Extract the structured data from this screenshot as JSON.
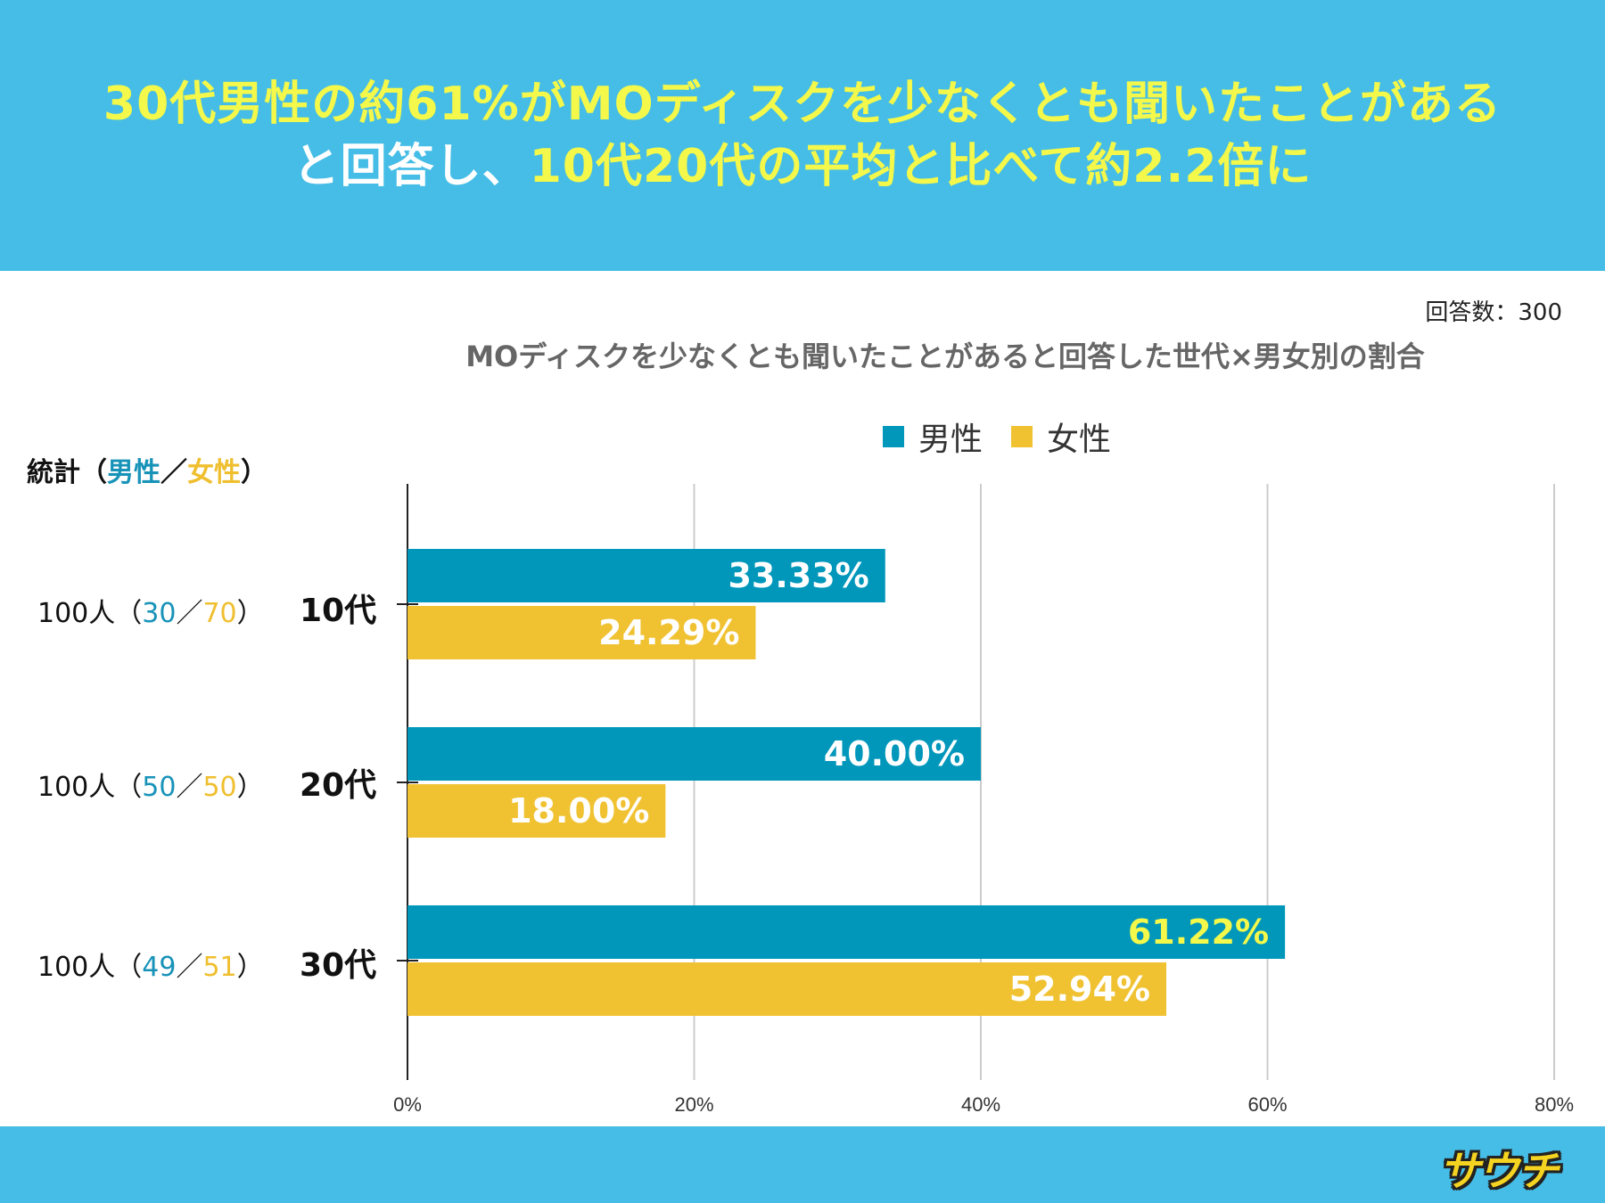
{
  "headline": {
    "line1": "30代男性の約61%がMOディスクを少なくとも聞いたことがある",
    "line2_white": "と回答し、",
    "line2_yellow": "10代20代の平均と比べて約2.2倍に"
  },
  "respondents": "回答数：300",
  "stats": {
    "head_prefix": "統計（",
    "head_male": "男性",
    "head_sep": "／",
    "head_female": "女性",
    "head_suffix": "）",
    "rows": [
      {
        "total": "100人（",
        "male": "30",
        "sep": "／",
        "female": "70",
        "end": "）",
        "age": "10代"
      },
      {
        "total": "100人（",
        "male": "50",
        "sep": "／",
        "female": "50",
        "end": "）",
        "age": "20代"
      },
      {
        "total": "100人（",
        "male": "49",
        "sep": "／",
        "female": "51",
        "end": "）",
        "age": "30代"
      }
    ]
  },
  "colors": {
    "male": "#0097bb",
    "female": "#f0c232",
    "header": "#45bde6",
    "highlight": "#f3f84a"
  },
  "brand": "サウチ",
  "chart_data": {
    "type": "bar",
    "orientation": "horizontal",
    "title": "MOディスクを少なくとも聞いたことがあると回答した世代×男女別の割合",
    "categories": [
      "10代",
      "20代",
      "30代"
    ],
    "series": [
      {
        "name": "男性",
        "values": [
          33.33,
          40.0,
          61.22
        ],
        "labels": [
          "33.33%",
          "40.00%",
          "61.22%"
        ]
      },
      {
        "name": "女性",
        "values": [
          24.29,
          18.0,
          52.94
        ],
        "labels": [
          "24.29%",
          "18.00%",
          "52.94%"
        ]
      }
    ],
    "xlim": [
      0,
      80
    ],
    "xticks": [
      "0%",
      "20%",
      "40%",
      "60%",
      "80%"
    ],
    "highlight_label": "61.22%",
    "legend": "top",
    "grid": true
  }
}
